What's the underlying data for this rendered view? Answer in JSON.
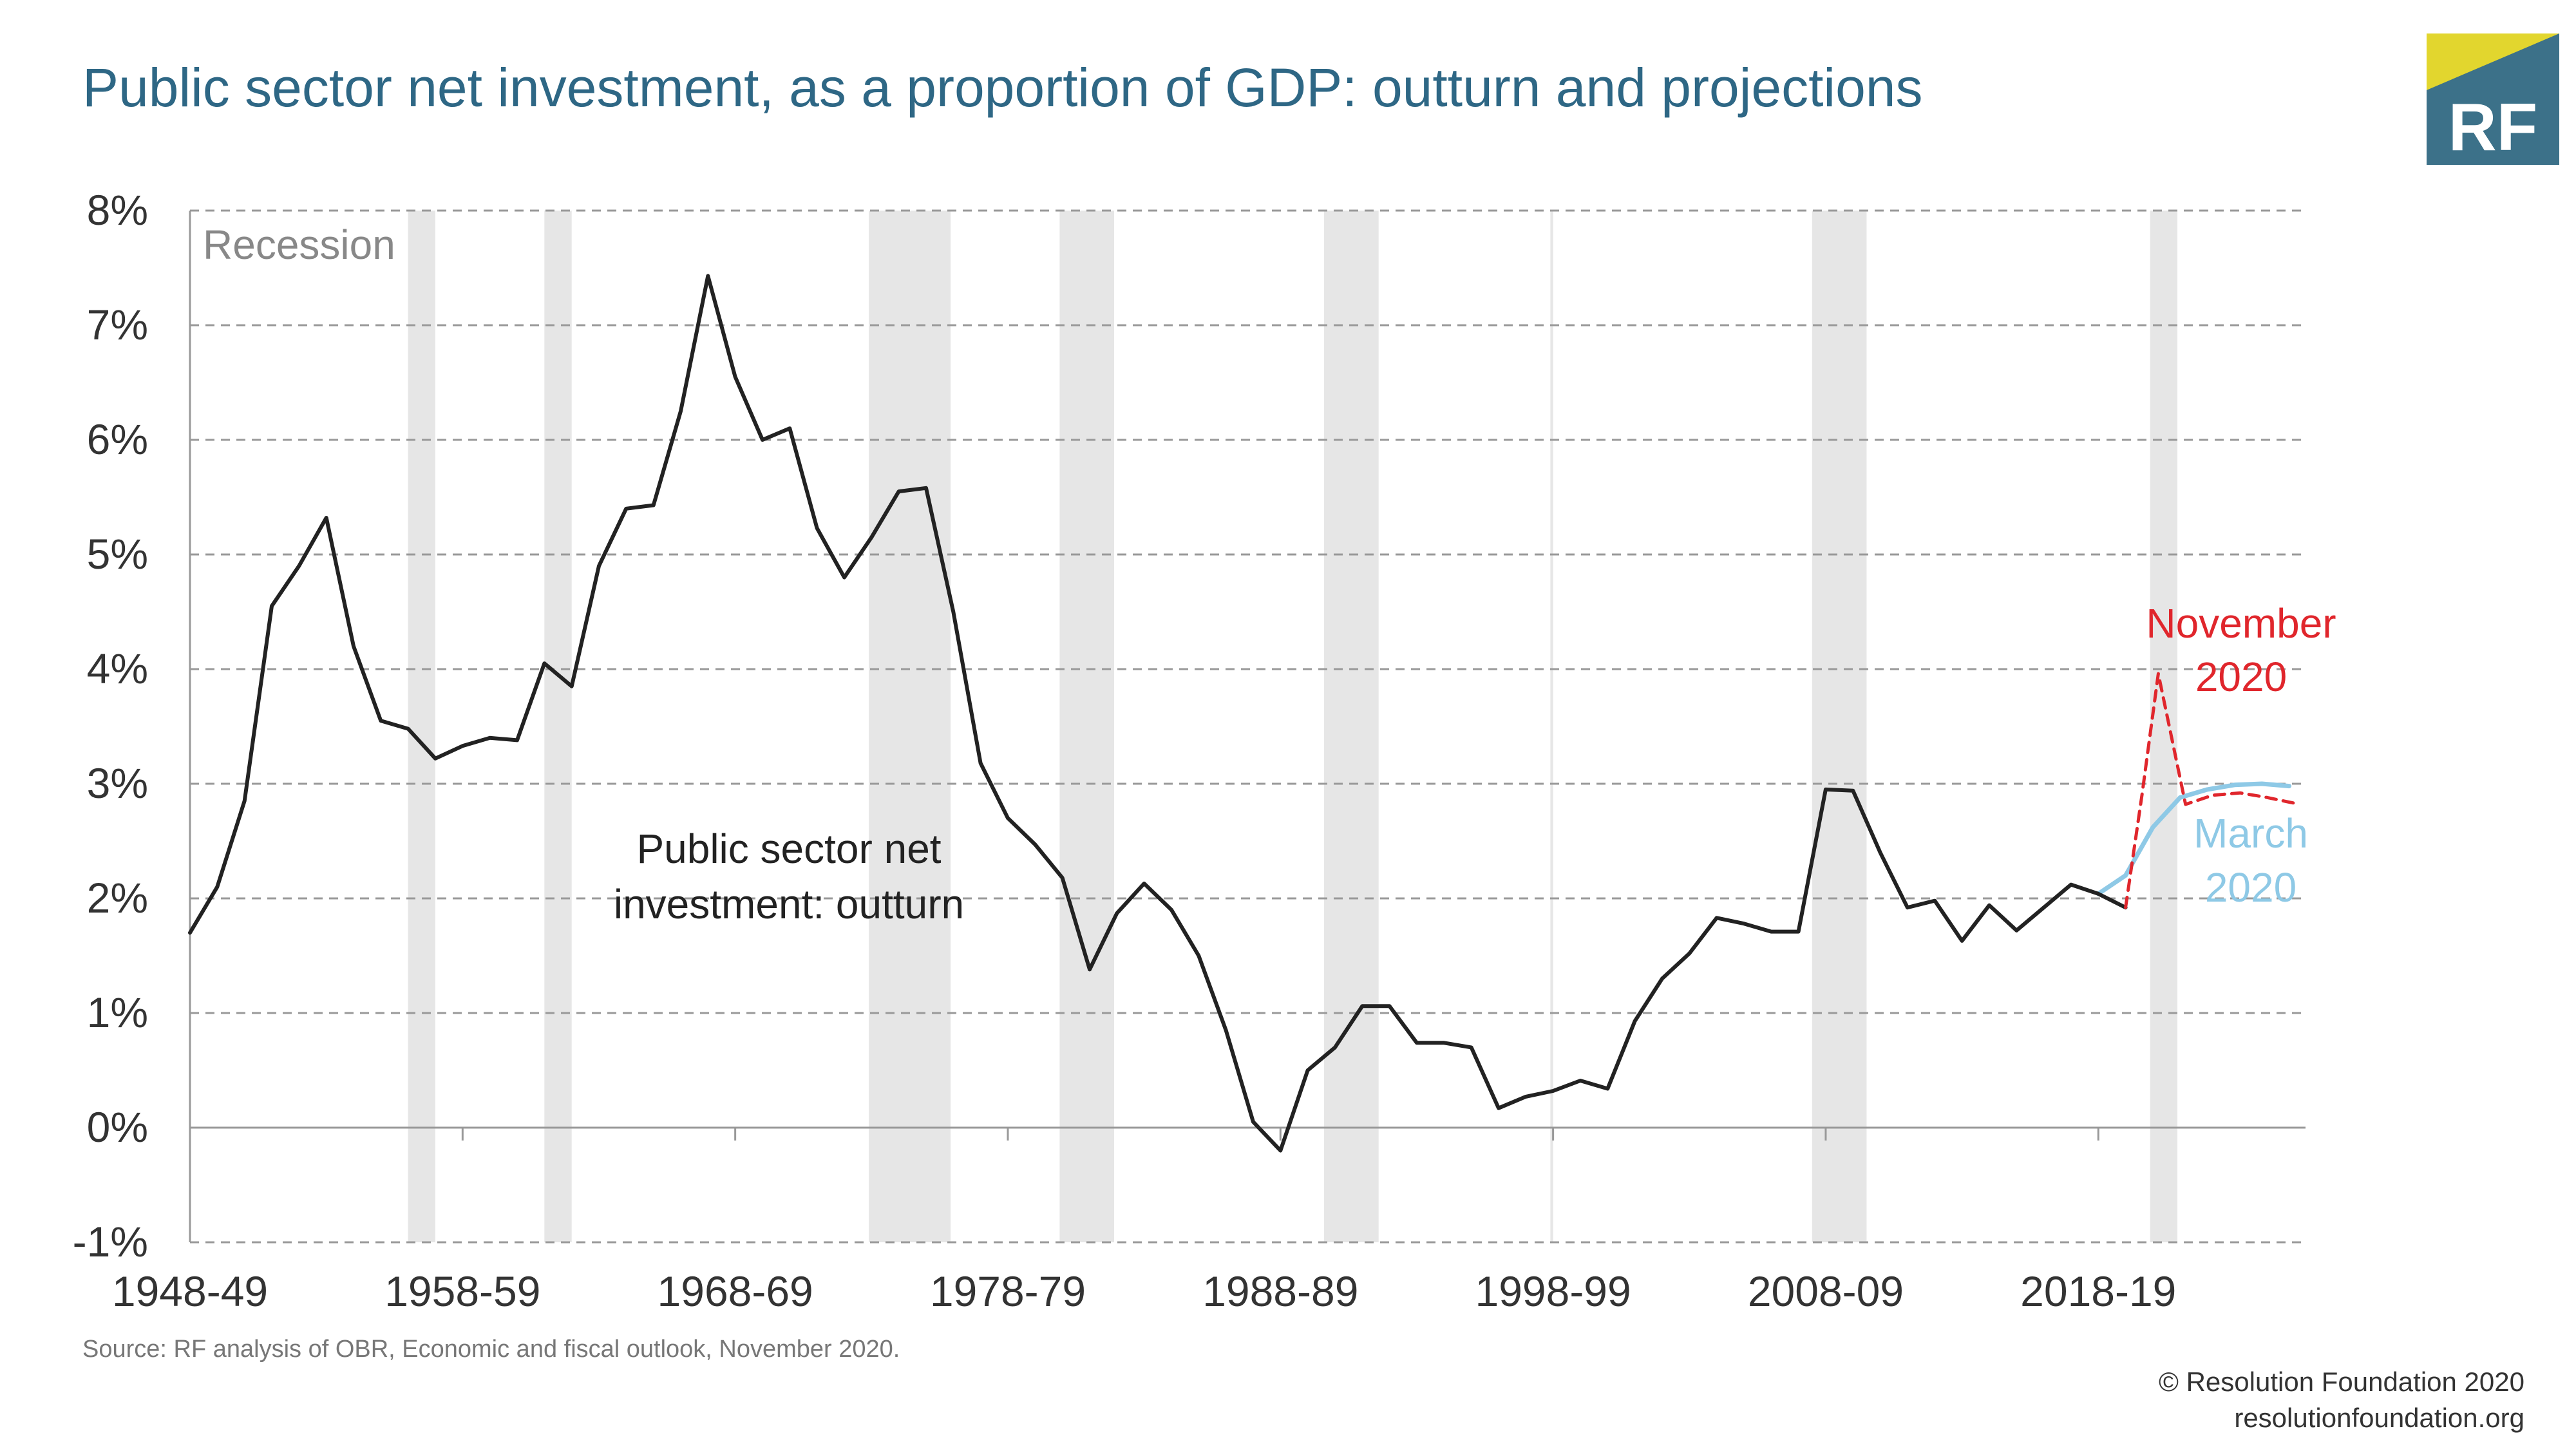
{
  "title": "Public sector net investment, as a proportion of GDP: outturn and projections",
  "logo": {
    "text": "RF",
    "colors": {
      "background": "#3c7189",
      "flash": "#e2d62e"
    }
  },
  "source": "Source: RF analysis of OBR, Economic and fiscal outlook, November 2020.",
  "credit": {
    "line1": "© Resolution Foundation 2020",
    "line2": "resolutionfoundation.org"
  },
  "annotations": {
    "recession": "Recession",
    "outturn_line1": "Public sector net",
    "outturn_line2": "investment: outturn",
    "november_line1": "November",
    "november_line2": "2020",
    "march_line1": "March",
    "march_line2": "2020"
  },
  "colors": {
    "outturn": "#222222",
    "november": "#e0262c",
    "march": "#8ec9e6",
    "recession": "#e6e6e6",
    "grid": "#999999"
  },
  "chart_data": {
    "type": "line",
    "xlabel": "",
    "ylabel": "",
    "ylim": [
      -1,
      8
    ],
    "xlim": [
      1948,
      2025.6
    ],
    "y_ticks": [
      -1,
      0,
      1,
      2,
      3,
      4,
      5,
      6,
      7,
      8
    ],
    "y_tick_labels": [
      "-1%",
      "0%",
      "1%",
      "2%",
      "3%",
      "4%",
      "5%",
      "6%",
      "7%",
      "8%"
    ],
    "x_ticks": [
      1948,
      1958,
      1968,
      1978,
      1988,
      1998,
      2008,
      2018
    ],
    "x_tick_labels": [
      "1948-49",
      "1958-59",
      "1968-69",
      "1978-79",
      "1988-89",
      "1998-99",
      "2008-09",
      "2018-19"
    ],
    "grid": "horizontal dashed",
    "recessions": [
      [
        1956.0,
        1957.0
      ],
      [
        1961.0,
        1962.0
      ],
      [
        1972.9,
        1975.9
      ],
      [
        1979.9,
        1981.9
      ],
      [
        1989.6,
        1991.6
      ],
      [
        1997.9,
        1998.0
      ],
      [
        2007.5,
        2009.5
      ],
      [
        2019.9,
        2020.9
      ]
    ],
    "series": [
      {
        "name": "Public sector net investment: outturn",
        "style": "solid",
        "x": [
          1948,
          1949,
          1950,
          1951,
          1952,
          1953,
          1954,
          1955,
          1956,
          1957,
          1958,
          1959,
          1960,
          1961,
          1962,
          1963,
          1964,
          1965,
          1966,
          1967,
          1968,
          1969,
          1970,
          1971,
          1972,
          1973,
          1974,
          1975,
          1976,
          1977,
          1978,
          1979,
          1980,
          1981,
          1982,
          1983,
          1984,
          1985,
          1986,
          1987,
          1988,
          1989,
          1990,
          1991,
          1992,
          1993,
          1994,
          1995,
          1996,
          1997,
          1998,
          1999,
          2000,
          2001,
          2002,
          2003,
          2004,
          2005,
          2006,
          2007,
          2008,
          2009,
          2010,
          2011,
          2012,
          2013,
          2014,
          2015,
          2016,
          2017,
          2018,
          2019
        ],
        "values": [
          1.7,
          2.1,
          2.85,
          4.55,
          4.9,
          5.32,
          4.2,
          3.55,
          3.48,
          3.22,
          3.33,
          3.4,
          3.38,
          4.05,
          3.85,
          4.9,
          5.4,
          5.43,
          6.25,
          7.43,
          6.55,
          6.0,
          6.1,
          5.23,
          4.8,
          5.15,
          5.55,
          5.58,
          4.5,
          3.18,
          2.7,
          2.47,
          2.18,
          1.38,
          1.87,
          2.13,
          1.9,
          1.5,
          0.85,
          0.05,
          -0.2,
          0.5,
          0.7,
          1.06,
          1.06,
          0.74,
          0.74,
          0.7,
          0.17,
          0.27,
          0.32,
          0.41,
          0.34,
          0.93,
          1.3,
          1.52,
          1.83,
          1.78,
          1.71,
          1.71,
          2.95,
          2.94,
          2.4,
          1.92,
          1.98,
          1.63,
          1.94,
          1.72,
          1.92,
          2.12,
          2.04,
          1.92
        ]
      },
      {
        "name": "November 2020",
        "style": "dashed",
        "x": [
          2019,
          2019.6,
          2020.2,
          2021.2,
          2022.2,
          2023.2,
          2024.2,
          2025.2
        ],
        "values": [
          1.92,
          2.9,
          3.96,
          2.82,
          2.9,
          2.92,
          2.88,
          2.83
        ]
      },
      {
        "name": "March 2020",
        "style": "solid",
        "x": [
          2018,
          2019,
          2020,
          2021,
          2022,
          2023,
          2024,
          2025
        ],
        "values": [
          2.04,
          2.2,
          2.62,
          2.88,
          2.95,
          2.99,
          3.0,
          2.98
        ]
      }
    ]
  }
}
